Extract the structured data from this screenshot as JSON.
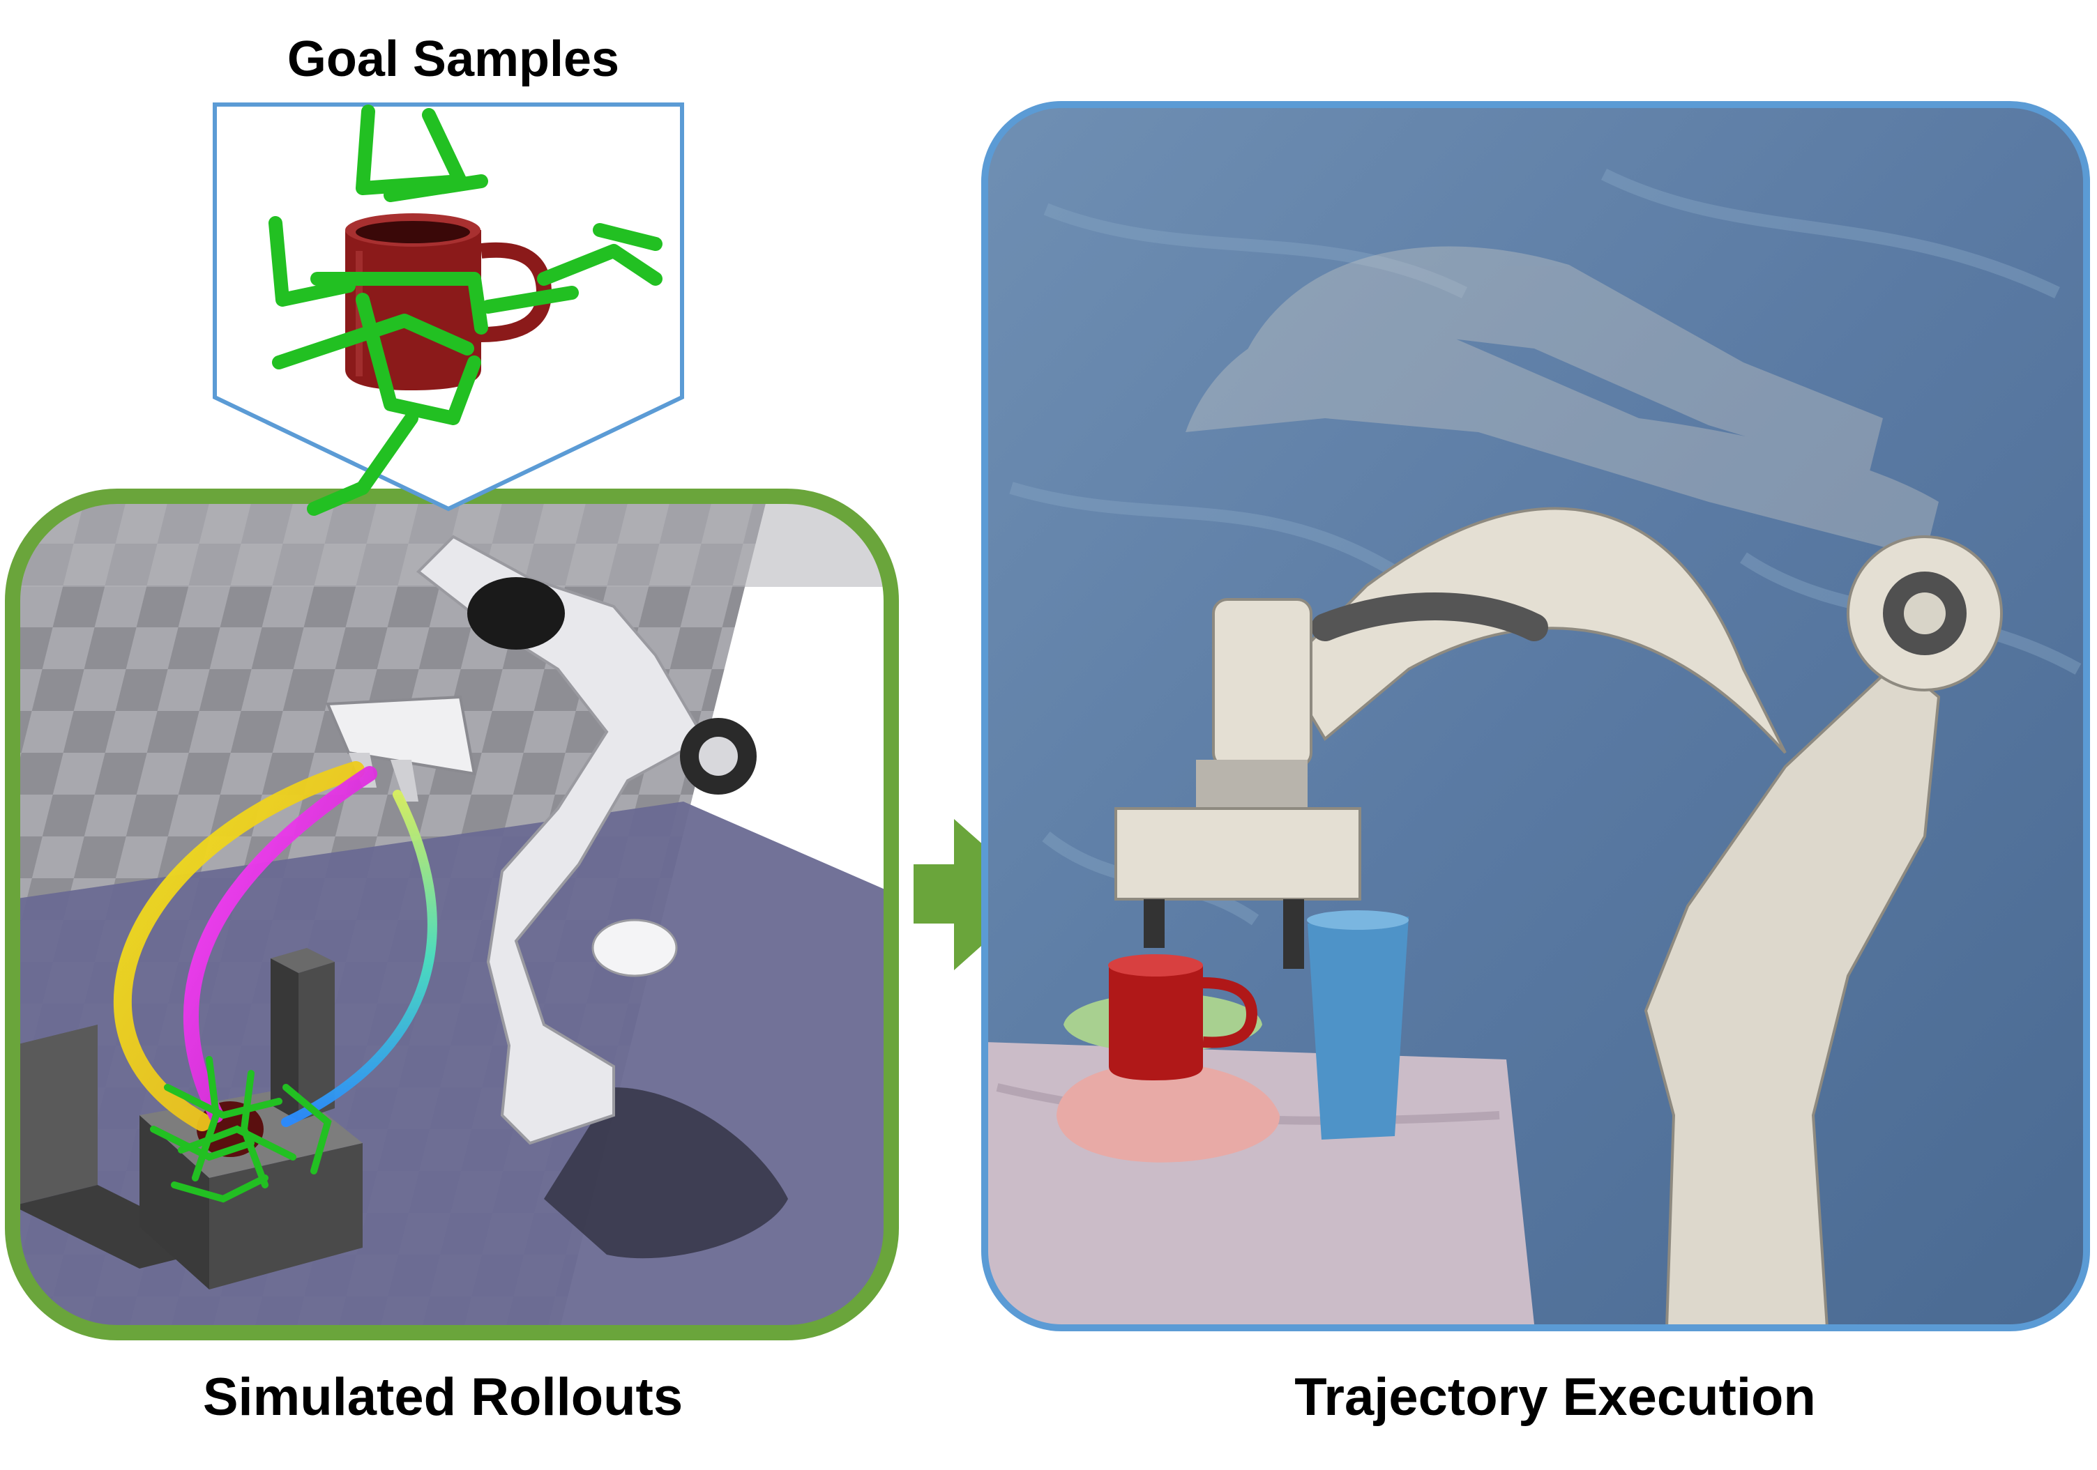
{
  "labels": {
    "goal_samples": "Goal Samples",
    "simulated_rollouts": "Simulated Rollouts",
    "trajectory_execution": "Trajectory Execution"
  },
  "colors": {
    "sim_panel_border": "#6aa53b",
    "goal_callout_border": "#5b9bd5",
    "real_panel_border": "#5b9bd5",
    "arrow": "#6aa53b",
    "grasp_pose": "#22c022",
    "mug": "#8b1a1a"
  },
  "icons": {
    "arrow": "right-arrow-icon"
  }
}
